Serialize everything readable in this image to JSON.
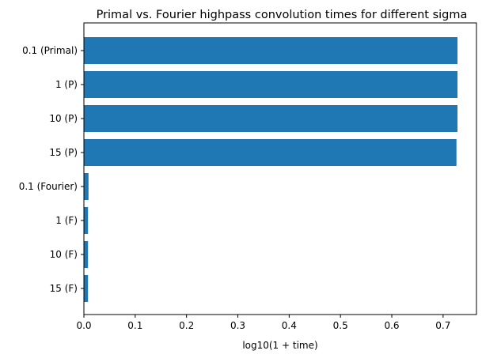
{
  "chart_data": {
    "type": "bar",
    "orientation": "horizontal",
    "title": "Primal vs. Fourier highpass convolution times for different sigma",
    "xlabel": "log10(1 + time)",
    "ylabel": "",
    "categories": [
      "0.1 (Primal)",
      "1 (P)",
      "10 (P)",
      "15 (P)",
      "0.1 (Fourier)",
      "1 (F)",
      "10 (F)",
      "15 (F)"
    ],
    "values": [
      0.728,
      0.728,
      0.728,
      0.726,
      0.009,
      0.008,
      0.008,
      0.008
    ],
    "xlim": [
      0,
      0.765
    ],
    "xticks": [
      "0.0",
      "0.1",
      "0.2",
      "0.3",
      "0.4",
      "0.5",
      "0.6",
      "0.7"
    ],
    "bar_color": "#1f77b4",
    "grid": false,
    "legend": "none"
  }
}
